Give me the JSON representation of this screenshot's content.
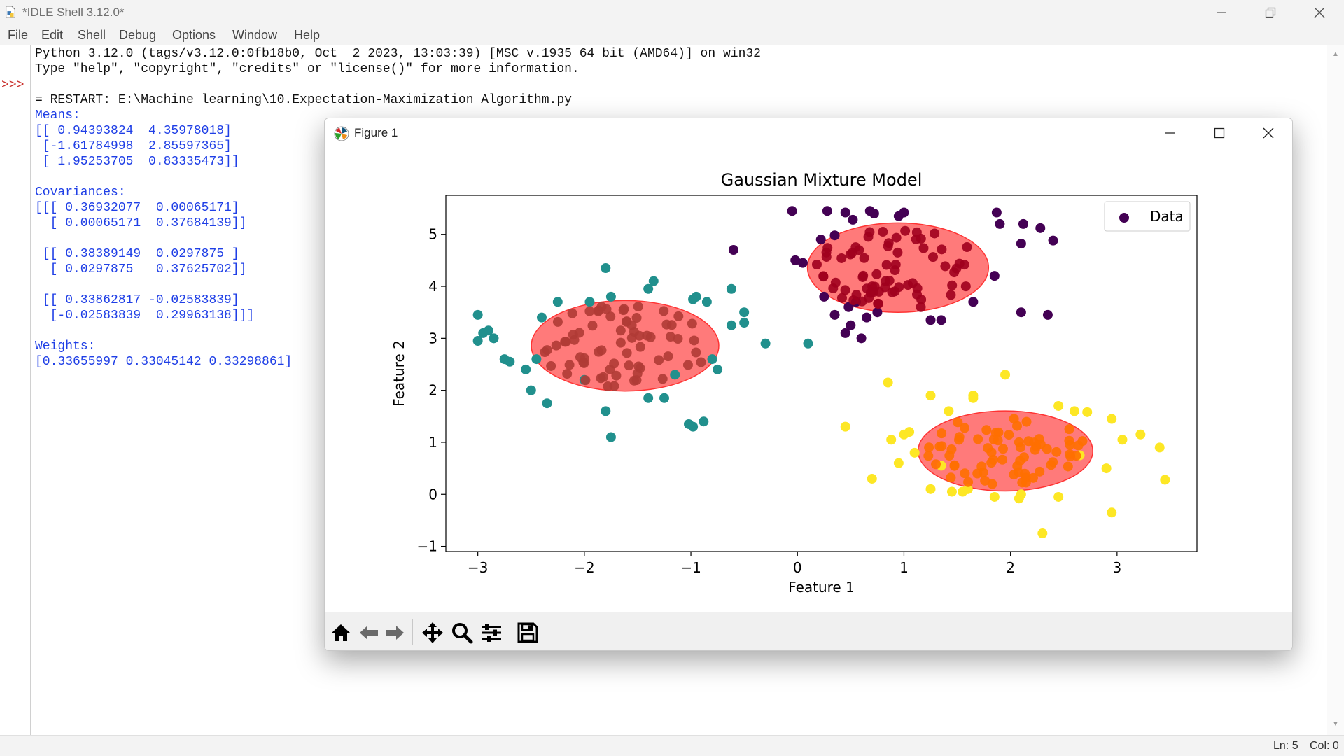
{
  "window": {
    "title": "*IDLE Shell 3.12.0*"
  },
  "menu": [
    "File",
    "Edit",
    "Shell",
    "Debug",
    "Options",
    "Window",
    "Help"
  ],
  "shell": {
    "prompt": ">>>",
    "lines": [
      {
        "text": "Python 3.12.0 (tags/v3.12.0:0fb18b0, Oct  2 2023, 13:03:39) [MSC v.1935 64 bit (AMD64)] on win32",
        "color": "black"
      },
      {
        "text": "Type \"help\", \"copyright\", \"credits\" or \"license()\" for more information.",
        "color": "black"
      },
      {
        "text": "",
        "color": "black"
      },
      {
        "text": "= RESTART: E:\\Machine learning\\10.Expectation-Maximization Algorithm.py",
        "color": "black"
      },
      {
        "text": "Means:",
        "color": "blue"
      },
      {
        "text": "[[ 0.94393824  4.35978018]",
        "color": "blue"
      },
      {
        "text": " [-1.61784998  2.85597365]",
        "color": "blue"
      },
      {
        "text": " [ 1.95253705  0.83335473]]",
        "color": "blue"
      },
      {
        "text": "",
        "color": "blue"
      },
      {
        "text": "Covariances:",
        "color": "blue"
      },
      {
        "text": "[[[ 0.36932077  0.00065171]",
        "color": "blue"
      },
      {
        "text": "  [ 0.00065171  0.37684139]]",
        "color": "blue"
      },
      {
        "text": "",
        "color": "blue"
      },
      {
        "text": " [[ 0.38389149  0.0297875 ]",
        "color": "blue"
      },
      {
        "text": "  [ 0.0297875   0.37625702]]",
        "color": "blue"
      },
      {
        "text": "",
        "color": "blue"
      },
      {
        "text": " [[ 0.33862817 -0.02583839]",
        "color": "blue"
      },
      {
        "text": "  [-0.02583839  0.29963138]]]",
        "color": "blue"
      },
      {
        "text": "",
        "color": "blue"
      },
      {
        "text": "Weights:",
        "color": "blue"
      },
      {
        "text": "[0.33655997 0.33045142 0.33298861]",
        "color": "blue"
      }
    ]
  },
  "status": {
    "ln": "Ln: 5",
    "col": "Col: 0"
  },
  "figure": {
    "title": "Figure 1",
    "toolbar": [
      "home-icon",
      "back-icon",
      "forward-icon",
      "pan-icon",
      "zoom-icon",
      "configure-icon",
      "save-icon"
    ]
  },
  "chart_data": {
    "type": "scatter",
    "title": "Gaussian Mixture Model",
    "xlabel": "Feature 1",
    "ylabel": "Feature 2",
    "xlim": [
      -3.3,
      3.75
    ],
    "ylim": [
      -1.1,
      5.75
    ],
    "xticks": [
      -3,
      -2,
      -1,
      0,
      1,
      2,
      3
    ],
    "yticks": [
      -1,
      0,
      1,
      2,
      3,
      4,
      5
    ],
    "xtick_labels": [
      "−3",
      "−2",
      "−1",
      "0",
      "1",
      "2",
      "3"
    ],
    "ytick_labels": [
      "−1",
      "0",
      "1",
      "2",
      "3",
      "4",
      "5"
    ],
    "legend": {
      "label": "Data",
      "position": "top-right",
      "color": "#440154"
    },
    "grid": false,
    "clusters": [
      {
        "color": "#440154",
        "points": [
          [
            -0.05,
            5.45
          ],
          [
            0.28,
            5.45
          ],
          [
            0.45,
            5.42
          ],
          [
            0.52,
            5.28
          ],
          [
            0.68,
            5.45
          ],
          [
            0.72,
            5.4
          ],
          [
            0.95,
            5.35
          ],
          [
            1.0,
            5.42
          ],
          [
            1.87,
            5.42
          ],
          [
            1.9,
            5.2
          ],
          [
            2.12,
            5.2
          ],
          [
            2.28,
            5.12
          ],
          [
            2.4,
            4.88
          ],
          [
            2.1,
            4.82
          ],
          [
            -0.6,
            4.7
          ],
          [
            -0.02,
            4.5
          ],
          [
            0.05,
            4.45
          ],
          [
            0.22,
            4.9
          ],
          [
            0.35,
            4.98
          ],
          [
            1.85,
            4.2
          ],
          [
            0.48,
            3.6
          ],
          [
            0.35,
            3.45
          ],
          [
            0.5,
            3.25
          ],
          [
            0.45,
            3.1
          ],
          [
            0.6,
            3.0
          ],
          [
            0.65,
            3.4
          ],
          [
            1.25,
            3.35
          ],
          [
            1.35,
            3.35
          ],
          [
            1.65,
            3.7
          ],
          [
            2.1,
            3.5
          ],
          [
            2.35,
            3.45
          ],
          [
            0.75,
            3.5
          ],
          [
            0.25,
            3.8
          ],
          [
            0.55,
            3.7
          ]
        ]
      },
      {
        "color": "#21908d",
        "points": [
          [
            -1.8,
            4.35
          ],
          [
            -3.0,
            3.45
          ],
          [
            -2.4,
            3.4
          ],
          [
            -2.25,
            3.7
          ],
          [
            -1.95,
            3.7
          ],
          [
            -1.75,
            3.8
          ],
          [
            -1.35,
            4.1
          ],
          [
            -1.4,
            3.95
          ],
          [
            -0.98,
            3.75
          ],
          [
            -0.95,
            3.8
          ],
          [
            -0.85,
            3.7
          ],
          [
            -0.62,
            3.95
          ],
          [
            -0.5,
            3.5
          ],
          [
            -0.5,
            3.3
          ],
          [
            -0.62,
            3.25
          ],
          [
            -0.3,
            2.9
          ],
          [
            0.1,
            2.9
          ],
          [
            -2.95,
            3.1
          ],
          [
            -2.9,
            3.15
          ],
          [
            -2.85,
            3.0
          ],
          [
            -3.0,
            2.95
          ],
          [
            -2.75,
            2.6
          ],
          [
            -2.7,
            2.55
          ],
          [
            -2.55,
            2.4
          ],
          [
            -2.5,
            2.0
          ],
          [
            -2.35,
            1.75
          ],
          [
            -2.0,
            2.2
          ],
          [
            -1.8,
            1.6
          ],
          [
            -1.75,
            1.1
          ],
          [
            -1.4,
            1.85
          ],
          [
            -1.25,
            1.85
          ],
          [
            -1.02,
            1.35
          ],
          [
            -0.98,
            1.3
          ],
          [
            -0.88,
            1.4
          ],
          [
            -0.75,
            2.4
          ],
          [
            -0.8,
            2.6
          ],
          [
            -2.45,
            2.6
          ],
          [
            -1.15,
            2.3
          ]
        ]
      },
      {
        "color": "#fde725",
        "points": [
          [
            0.45,
            1.3
          ],
          [
            0.7,
            0.3
          ],
          [
            0.85,
            2.15
          ],
          [
            0.88,
            1.05
          ],
          [
            0.95,
            0.6
          ],
          [
            1.0,
            1.15
          ],
          [
            1.05,
            1.2
          ],
          [
            1.1,
            0.8
          ],
          [
            1.25,
            1.9
          ],
          [
            1.25,
            0.1
          ],
          [
            1.42,
            1.6
          ],
          [
            1.45,
            0.05
          ],
          [
            1.55,
            0.05
          ],
          [
            1.6,
            0.1
          ],
          [
            1.65,
            1.9
          ],
          [
            1.65,
            1.85
          ],
          [
            1.95,
            2.3
          ],
          [
            1.85,
            -0.05
          ],
          [
            2.08,
            -0.08
          ],
          [
            2.3,
            -0.75
          ],
          [
            2.45,
            -0.05
          ],
          [
            2.45,
            1.7
          ],
          [
            2.6,
            1.6
          ],
          [
            2.72,
            1.58
          ],
          [
            2.9,
            0.5
          ],
          [
            2.95,
            1.45
          ],
          [
            2.95,
            -0.35
          ],
          [
            3.05,
            1.05
          ],
          [
            3.22,
            1.15
          ],
          [
            3.4,
            0.9
          ],
          [
            3.45,
            0.28
          ],
          [
            2.1,
            0.0
          ],
          [
            1.35,
            0.55
          ],
          [
            2.65,
            0.75
          ]
        ]
      }
    ],
    "ellipses": [
      {
        "center": [
          0.94393824,
          4.35978018
        ],
        "rx": 0.85,
        "ry": 0.86,
        "fill": "#ff3333",
        "opacity": 0.65
      },
      {
        "center": [
          -1.61784998,
          2.85597365
        ],
        "rx": 0.88,
        "ry": 0.87,
        "fill": "#ff3333",
        "opacity": 0.65
      },
      {
        "center": [
          1.95253705,
          0.83335473
        ],
        "rx": 0.82,
        "ry": 0.77,
        "fill": "#ff3333",
        "opacity": 0.65
      }
    ],
    "inner_points": {
      "cluster0": {
        "color": "#a0001e",
        "count": 70
      },
      "cluster1": {
        "color": "#b03b35",
        "count": 70
      },
      "cluster2": {
        "color": "#ff6f00",
        "count": 70
      }
    }
  }
}
